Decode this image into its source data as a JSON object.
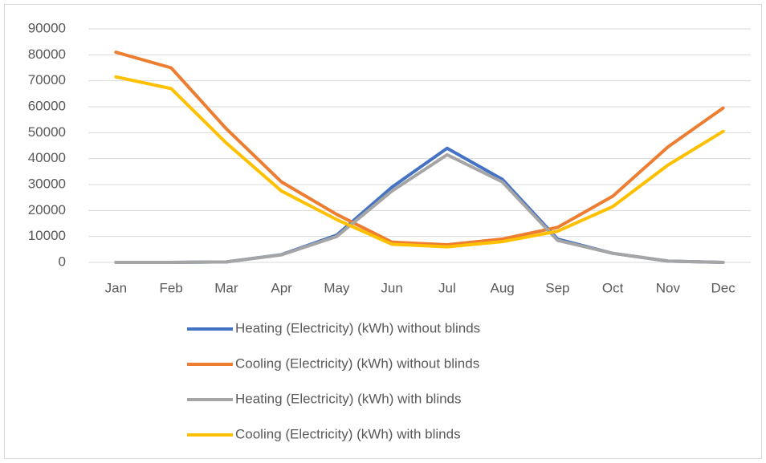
{
  "chart_data": {
    "type": "line",
    "categories": [
      "Jan",
      "Feb",
      "Mar",
      "Apr",
      "May",
      "Jun",
      "Jul",
      "Aug",
      "Sep",
      "Oct",
      "Nov",
      "Dec"
    ],
    "series": [
      {
        "name": "Heating (Electricity) (kWh) without blinds",
        "color": "#4472c4",
        "values": [
          0,
          0,
          200,
          3000,
          10500,
          29000,
          44000,
          32000,
          9000,
          3500,
          500,
          0
        ]
      },
      {
        "name": "Cooling (Electricity) (kWh) without blinds",
        "color": "#ed7d31",
        "values": [
          81000,
          75000,
          51500,
          31000,
          18500,
          7800,
          6800,
          9000,
          13500,
          25500,
          44500,
          59500
        ]
      },
      {
        "name": "Heating (Electricity) (kWh) with blinds",
        "color": "#a5a5a5",
        "values": [
          0,
          0,
          200,
          2900,
          10000,
          27500,
          41500,
          31000,
          8500,
          3500,
          500,
          0
        ]
      },
      {
        "name": "Cooling (Electricity) (kWh) with blinds",
        "color": "#ffc000",
        "values": [
          71500,
          67000,
          46000,
          27500,
          16500,
          7000,
          6000,
          8000,
          12000,
          21500,
          37500,
          50500
        ]
      }
    ],
    "ylim": [
      0,
      90000
    ],
    "yticks": [
      0,
      10000,
      20000,
      30000,
      40000,
      50000,
      60000,
      70000,
      80000,
      90000
    ],
    "grid": true,
    "legend": "bottom"
  }
}
